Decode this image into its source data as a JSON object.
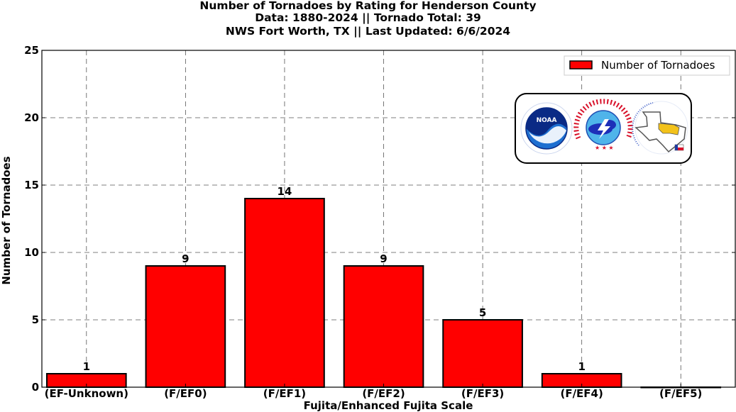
{
  "chart_data": {
    "type": "bar",
    "title_lines": [
      "Number of Tornadoes by Rating for Henderson County",
      "Data: 1880-2024 || Tornado Total: 39",
      "NWS Fort Worth, TX || Last Updated: 6/6/2024"
    ],
    "categories": [
      "(EF-Unknown)",
      "(F/EF0)",
      "(F/EF1)",
      "(F/EF2)",
      "(F/EF3)",
      "(F/EF4)",
      "(F/EF5)"
    ],
    "series": [
      {
        "name": "Number of Tornadoes",
        "values": [
          1,
          9,
          14,
          9,
          5,
          1,
          0
        ],
        "color": "#ff0000"
      }
    ],
    "data_labels": [
      "1",
      "9",
      "14",
      "9",
      "5",
      "1",
      ""
    ],
    "xlabel": "Fujita/Enhanced Fujita Scale",
    "ylabel": "Number of Tornadoes",
    "ylim": [
      0,
      25
    ],
    "yticks": [
      0,
      5,
      10,
      15,
      20,
      25
    ],
    "grid": true,
    "legend_position": "top-right",
    "logos": [
      "noaa-logo",
      "nws-logo",
      "nws-fort-worth-logo"
    ]
  }
}
